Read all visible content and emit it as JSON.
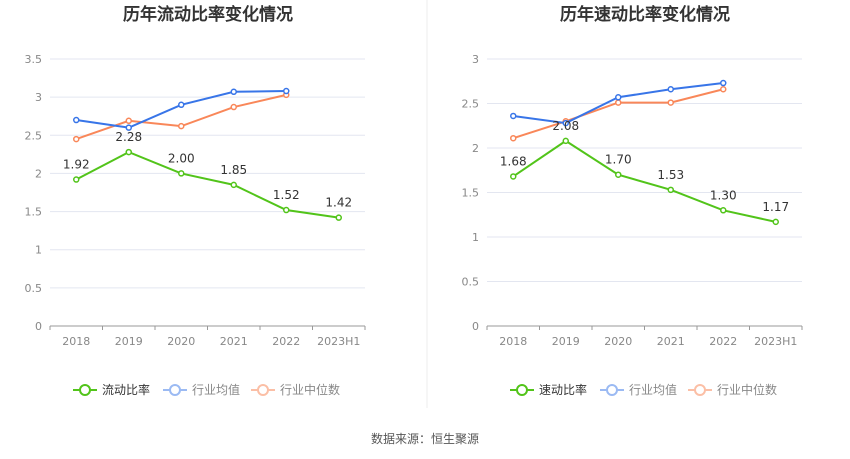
{
  "chart_data": [
    {
      "type": "line",
      "title": "历年流动比率变化情况",
      "categories": [
        "2018",
        "2019",
        "2020",
        "2021",
        "2022",
        "2023H1"
      ],
      "ylim": [
        0,
        3.5
      ],
      "yticks": [
        "0",
        "0.5",
        "1",
        "1.5",
        "2",
        "2.5",
        "3",
        "3.5"
      ],
      "series": [
        {
          "name": "流动比率",
          "color": "#52c41a",
          "values": [
            1.92,
            2.28,
            2.0,
            1.85,
            1.52,
            1.42
          ],
          "labels": [
            "1.92",
            "2.28",
            "2.00",
            "1.85",
            "1.52",
            "1.42"
          ]
        },
        {
          "name": "行业均值",
          "color": "#3875e8",
          "values": [
            2.7,
            2.6,
            2.9,
            3.07,
            3.08,
            null
          ]
        },
        {
          "name": "行业中位数",
          "color": "#f98759",
          "values": [
            2.45,
            2.69,
            2.62,
            2.87,
            3.03,
            null
          ]
        }
      ],
      "legend": "bottom"
    },
    {
      "type": "line",
      "title": "历年速动比率变化情况",
      "categories": [
        "2018",
        "2019",
        "2020",
        "2021",
        "2022",
        "2023H1"
      ],
      "ylim": [
        0,
        3
      ],
      "yticks": [
        "0",
        "0.5",
        "1",
        "1.5",
        "2",
        "2.5",
        "3"
      ],
      "series": [
        {
          "name": "速动比率",
          "color": "#52c41a",
          "values": [
            1.68,
            2.08,
            1.7,
            1.53,
            1.3,
            1.17
          ],
          "labels": [
            "1.68",
            "2.08",
            "1.70",
            "1.53",
            "1.30",
            "1.17"
          ]
        },
        {
          "name": "行业均值",
          "color": "#3875e8",
          "values": [
            2.36,
            2.28,
            2.57,
            2.66,
            2.73,
            null
          ]
        },
        {
          "name": "行业中位数",
          "color": "#f98759",
          "values": [
            2.11,
            2.3,
            2.51,
            2.51,
            2.66,
            null
          ]
        }
      ],
      "legend": "bottom"
    }
  ],
  "source": "数据来源：恒生聚源"
}
